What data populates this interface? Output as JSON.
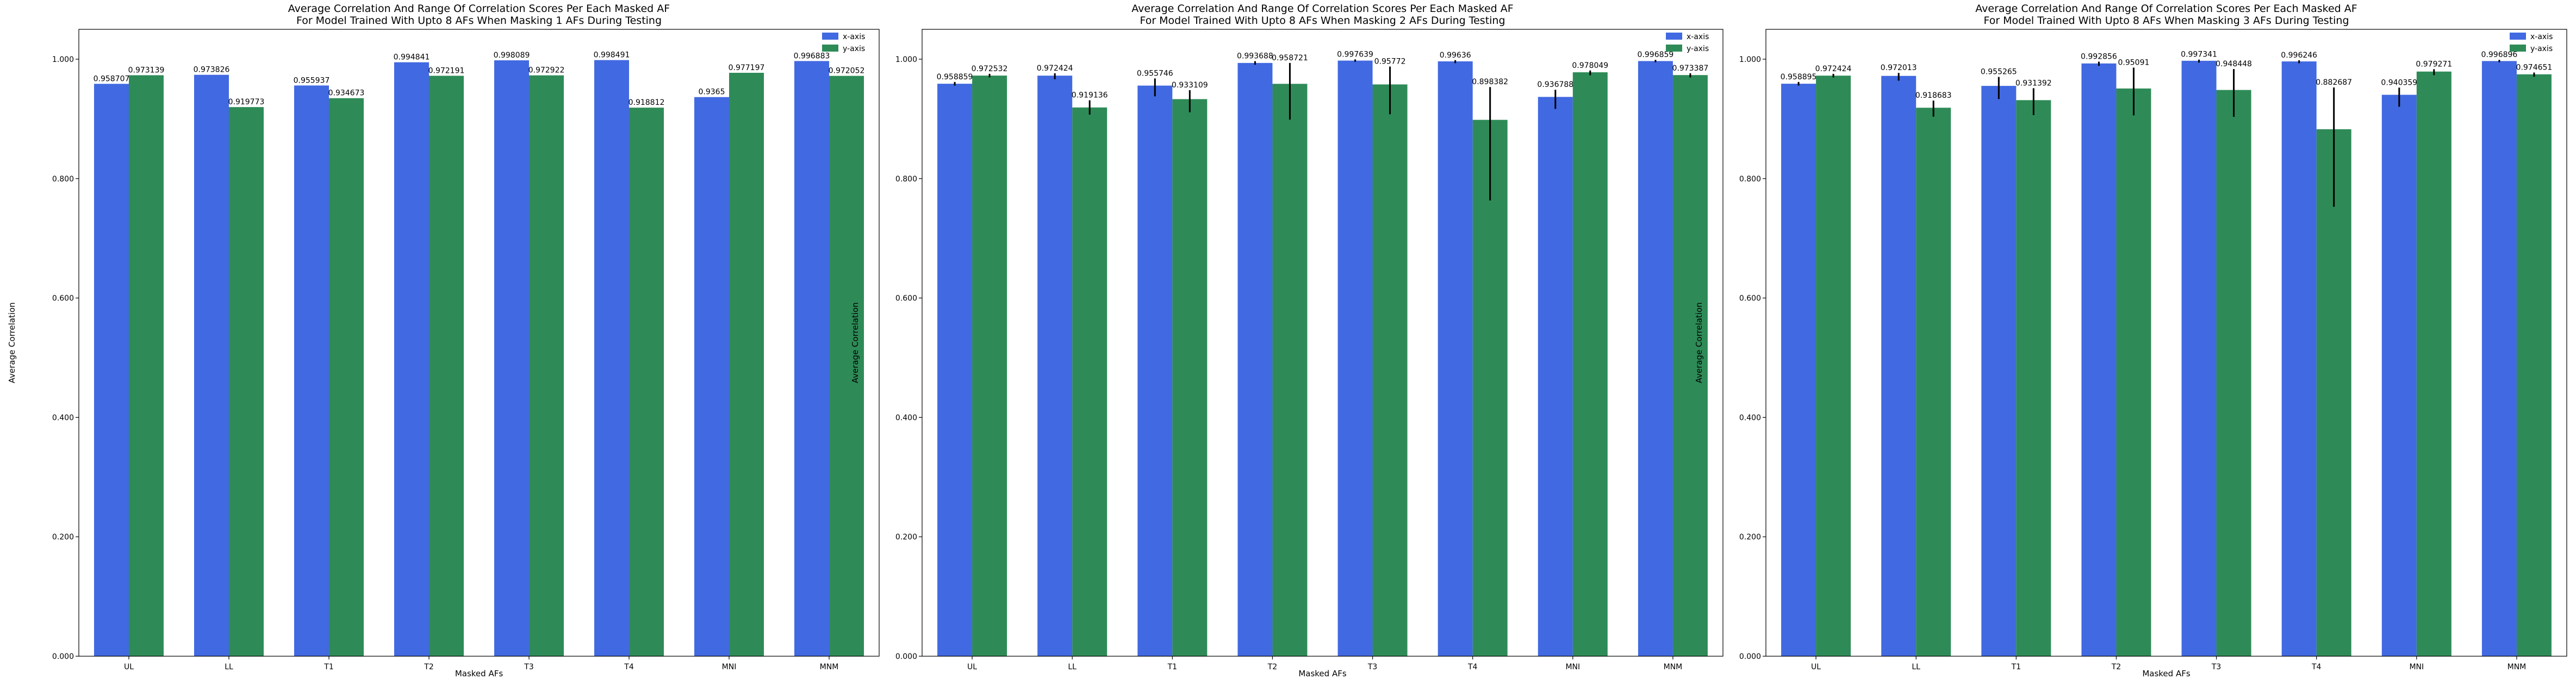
{
  "chart_data": [
    {
      "type": "bar",
      "title": "Average Correlation And Range Of Correlation Scores Per Each Masked AF\nFor Model Trained With Upto 8 AFs When Masking 1 AFs During Testing",
      "xlabel": "Masked AFs",
      "ylabel": "Average Correlation",
      "ylim": [
        0,
        1.05
      ],
      "yticks": [
        "0.000",
        "0.200",
        "0.400",
        "0.600",
        "0.800",
        "1.000"
      ],
      "ytick_values": [
        0,
        0.2,
        0.4,
        0.6,
        0.8,
        1.0
      ],
      "categories": [
        "UL",
        "LL",
        "T1",
        "T2",
        "T3",
        "T4",
        "MNI",
        "MNM"
      ],
      "legend": "top-right",
      "grid": false,
      "series": [
        {
          "name": "x-axis",
          "color": "#4169E1",
          "values": [
            0.958707,
            0.973826,
            0.955937,
            0.994841,
            0.998089,
            0.998491,
            0.9365,
            0.996883
          ],
          "labels": [
            "0.958707",
            "0.973826",
            "0.955937",
            "0.994841",
            "0.998089",
            "0.998491",
            "0.9365",
            "0.996883"
          ],
          "err_low": [
            0,
            0,
            0,
            0,
            0,
            0,
            0,
            0
          ],
          "err_high": [
            0,
            0,
            0,
            0,
            0,
            0,
            0,
            0
          ]
        },
        {
          "name": "y-axis",
          "color": "#2E8B57",
          "values": [
            0.973139,
            0.919773,
            0.934673,
            0.972191,
            0.972922,
            0.918812,
            0.977197,
            0.972052
          ],
          "labels": [
            "0.973139",
            "0.919773",
            "0.934673",
            "0.972191",
            "0.972922",
            "0.918812",
            "0.977197",
            "0.972052"
          ],
          "err_low": [
            0,
            0,
            0,
            0,
            0,
            0,
            0,
            0
          ],
          "err_high": [
            0,
            0,
            0,
            0,
            0,
            0,
            0,
            0
          ]
        }
      ]
    },
    {
      "type": "bar",
      "title": "Average Correlation And Range Of Correlation Scores Per Each Masked AF\nFor Model Trained With Upto 8 AFs When Masking 2 AFs During Testing",
      "xlabel": "Masked AFs",
      "ylabel": "Average Correlation",
      "ylim": [
        0,
        1.05
      ],
      "yticks": [
        "0.000",
        "0.200",
        "0.400",
        "0.600",
        "0.800",
        "1.000"
      ],
      "ytick_values": [
        0,
        0.2,
        0.4,
        0.6,
        0.8,
        1.0
      ],
      "categories": [
        "UL",
        "LL",
        "T1",
        "T2",
        "T3",
        "T4",
        "MNI",
        "MNM"
      ],
      "legend": "top-right",
      "grid": false,
      "series": [
        {
          "name": "x-axis",
          "color": "#4169E1",
          "values": [
            0.958859,
            0.972424,
            0.955746,
            0.993688,
            0.997639,
            0.99636,
            0.936788,
            0.996859
          ],
          "labels": [
            "0.958859",
            "0.972424",
            "0.955746",
            "0.993688",
            "0.997639",
            "0.99636",
            "0.936788",
            "0.996859"
          ],
          "err_low": [
            0.003,
            0.006,
            0.018,
            0.003,
            0.002,
            0.003,
            0.02,
            0.002
          ],
          "err_high": [
            0.003,
            0.004,
            0.012,
            0.003,
            0.002,
            0.002,
            0.012,
            0.002
          ]
        },
        {
          "name": "y-axis",
          "color": "#2E8B57",
          "values": [
            0.972532,
            0.919136,
            0.933109,
            0.958721,
            0.95772,
            0.898382,
            0.978049,
            0.973387
          ],
          "labels": [
            "0.972532",
            "0.919136",
            "0.933109",
            "0.958721",
            "0.95772",
            "0.898382",
            "0.978049",
            "0.973387"
          ],
          "err_low": [
            0.003,
            0.012,
            0.022,
            0.06,
            0.05,
            0.135,
            0.005,
            0.004
          ],
          "err_high": [
            0.003,
            0.012,
            0.015,
            0.035,
            0.03,
            0.055,
            0.003,
            0.003
          ]
        }
      ]
    },
    {
      "type": "bar",
      "title": "Average Correlation And Range Of Correlation Scores Per Each Masked AF\nFor Model Trained With Upto 8 AFs When Masking 3 AFs During Testing",
      "xlabel": "Masked AFs",
      "ylabel": "Average Correlation",
      "ylim": [
        0,
        1.05
      ],
      "yticks": [
        "0.000",
        "0.200",
        "0.400",
        "0.600",
        "0.800",
        "1.000"
      ],
      "ytick_values": [
        0,
        0.2,
        0.4,
        0.6,
        0.8,
        1.0
      ],
      "categories": [
        "UL",
        "LL",
        "T1",
        "T2",
        "T3",
        "T4",
        "MNI",
        "MNM"
      ],
      "legend": "top-right",
      "grid": false,
      "series": [
        {
          "name": "x-axis",
          "color": "#4169E1",
          "values": [
            0.958895,
            0.972013,
            0.955265,
            0.992856,
            0.997341,
            0.996246,
            0.940359,
            0.996896
          ],
          "labels": [
            "0.958895",
            "0.972013",
            "0.955265",
            "0.992856",
            "0.997341",
            "0.996246",
            "0.940359",
            "0.996896"
          ],
          "err_low": [
            0.003,
            0.008,
            0.022,
            0.004,
            0.003,
            0.003,
            0.02,
            0.002
          ],
          "err_high": [
            0.003,
            0.005,
            0.015,
            0.003,
            0.002,
            0.002,
            0.012,
            0.002
          ]
        },
        {
          "name": "y-axis",
          "color": "#2E8B57",
          "values": [
            0.972424,
            0.918683,
            0.931392,
            0.95091,
            0.948448,
            0.882687,
            0.979271,
            0.974651
          ],
          "labels": [
            "0.972424",
            "0.918683",
            "0.931392",
            "0.95091",
            "0.948448",
            "0.882687",
            "0.979271",
            "0.974651"
          ],
          "err_low": [
            0.003,
            0.015,
            0.025,
            0.045,
            0.045,
            0.13,
            0.006,
            0.004
          ],
          "err_high": [
            0.003,
            0.012,
            0.02,
            0.035,
            0.035,
            0.07,
            0.004,
            0.003
          ]
        }
      ]
    }
  ]
}
